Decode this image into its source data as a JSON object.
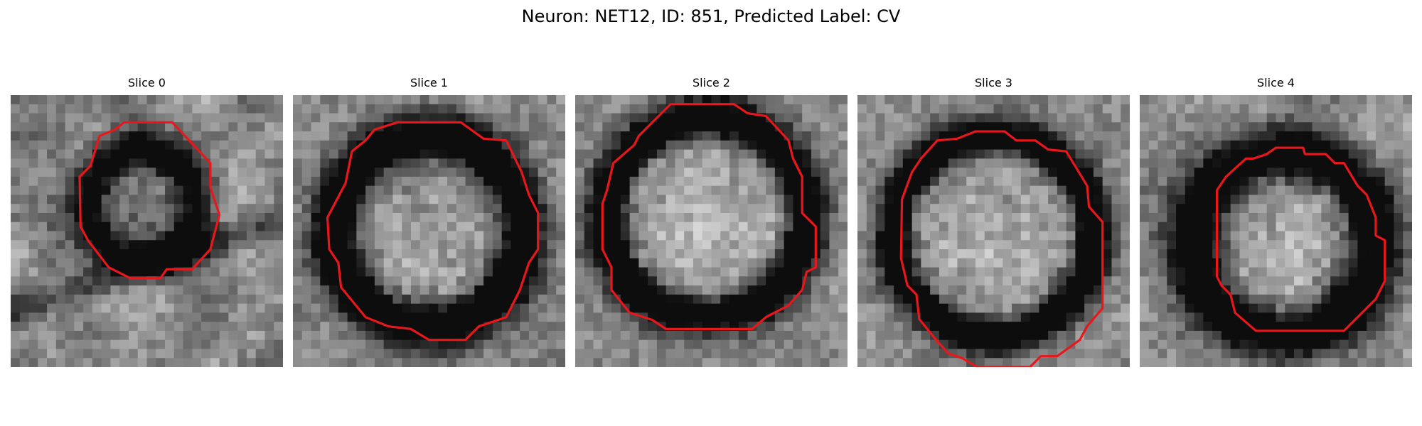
{
  "figure": {
    "title": "Neuron: NET12, ID: 851, Predicted Label: CV"
  },
  "panels": [
    {
      "title": "Slice 0",
      "contour_color": "#e8171b"
    },
    {
      "title": "Slice 1",
      "contour_color": "#e8171b"
    },
    {
      "title": "Slice 2",
      "contour_color": "#e8171b"
    },
    {
      "title": "Slice 3",
      "contour_color": "#e8171b"
    },
    {
      "title": "Slice 4",
      "contour_color": "#e8171b"
    }
  ]
}
